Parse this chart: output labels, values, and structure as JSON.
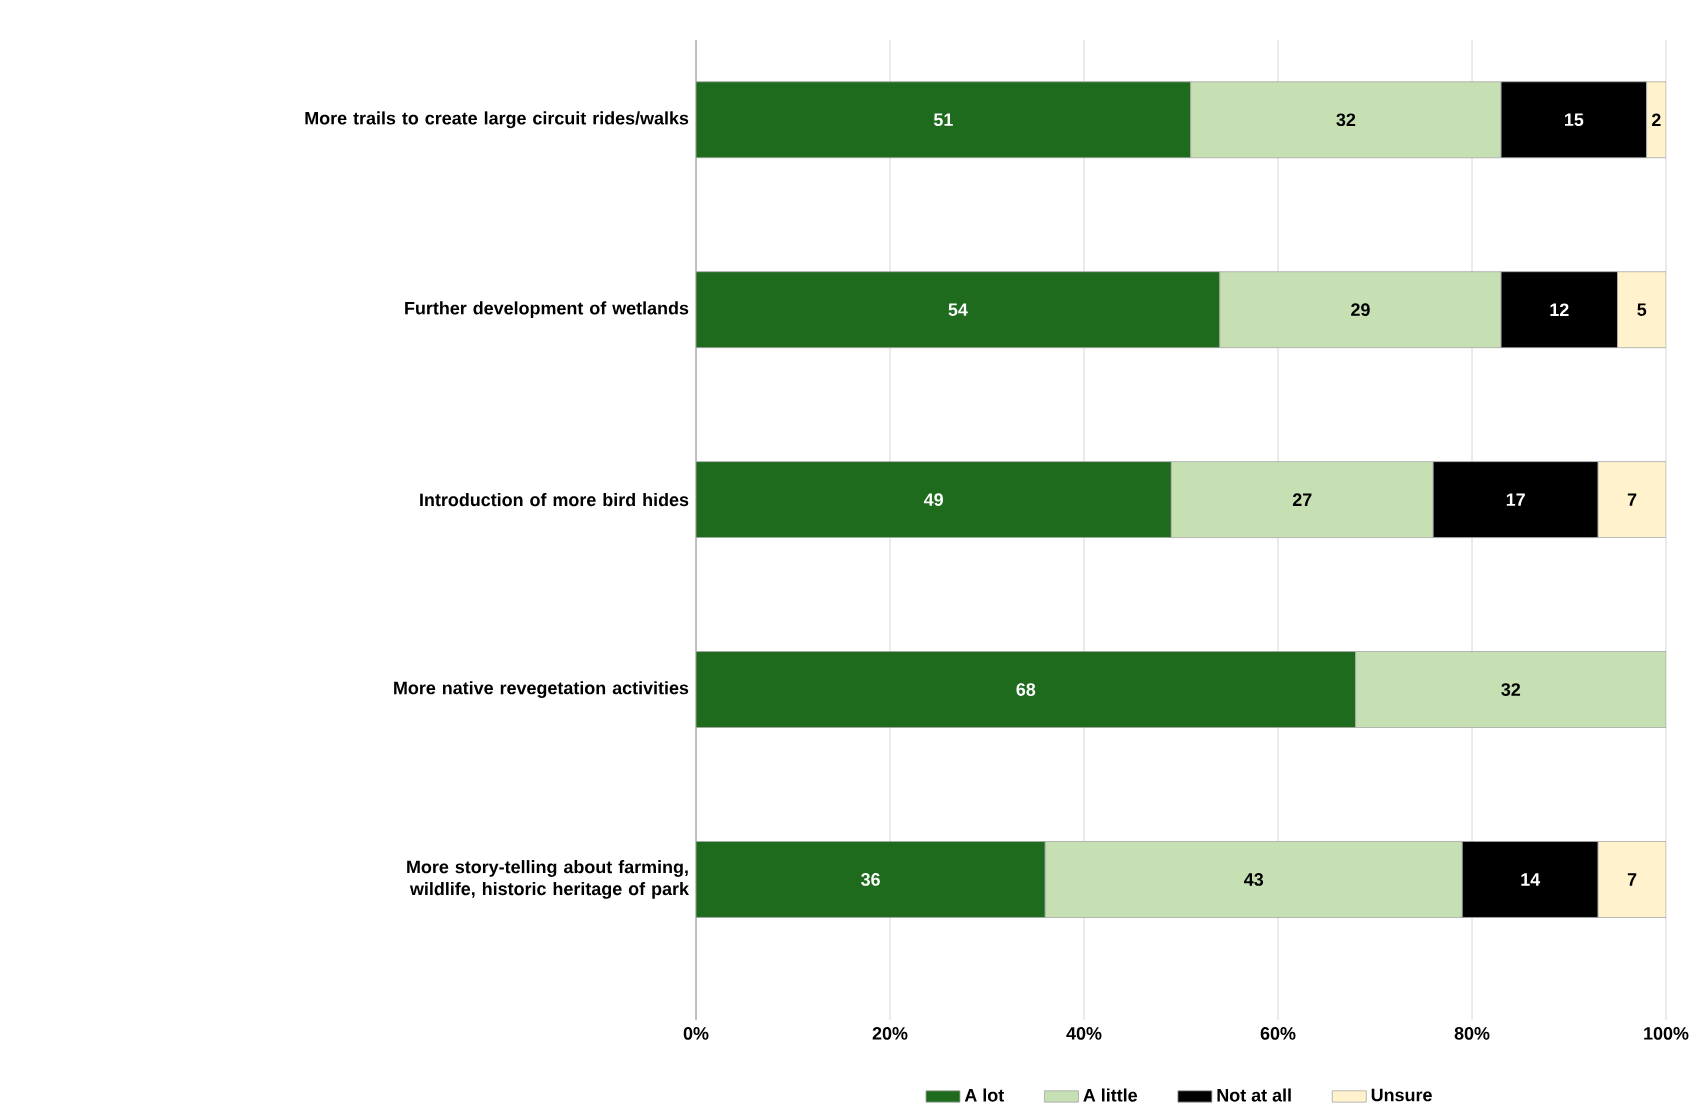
{
  "chart_data": {
    "type": "bar",
    "orientation": "horizontal",
    "stacked": true,
    "categories": [
      "More trails to create large circuit rides/walks",
      "Further development of wetlands",
      "Introduction of more bird hides",
      "More native revegetation activities",
      "More story-telling about farming, wildlife, historic heritage of park"
    ],
    "series": [
      {
        "name": "A lot",
        "color": "#1e6b1e",
        "values": [
          51,
          54,
          49,
          68,
          36
        ]
      },
      {
        "name": "A little",
        "color": "#c6e0b4",
        "values": [
          32,
          29,
          27,
          32,
          43
        ]
      },
      {
        "name": "Not at all",
        "color": "#000000",
        "values": [
          15,
          12,
          17,
          null,
          14
        ]
      },
      {
        "name": "Unsure",
        "color": "#fff2cc",
        "values": [
          2,
          5,
          7,
          null,
          7
        ]
      }
    ],
    "xlim": [
      0,
      100
    ],
    "xticks": [
      {
        "value": 0,
        "label": "0%"
      },
      {
        "value": 20,
        "label": "20%"
      },
      {
        "value": 40,
        "label": "40%"
      },
      {
        "value": 60,
        "label": "60%"
      },
      {
        "value": 80,
        "label": "80%"
      },
      {
        "value": 100,
        "label": "100%"
      }
    ],
    "grid": "x",
    "legend": "bottom",
    "data_labels": true
  }
}
